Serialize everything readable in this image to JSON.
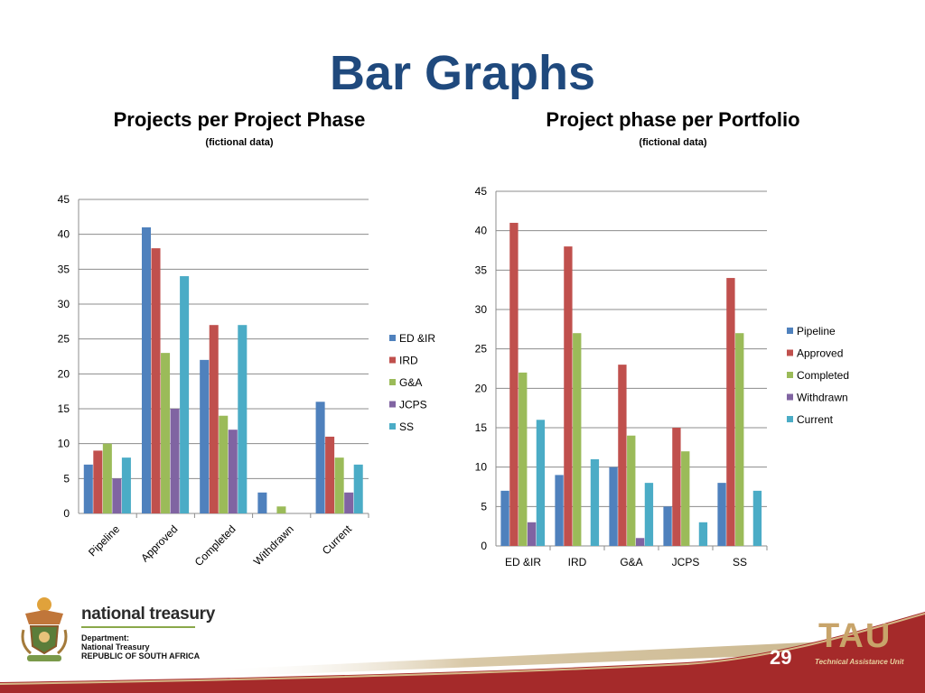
{
  "slide": {
    "title": "Bar Graphs",
    "page_number": "29",
    "footer": {
      "org_name": "national treasury",
      "dept_line1": "Department:",
      "dept_line2": "National Treasury",
      "republic": "REPUBLIC OF SOUTH AFRICA",
      "tau_logo": "TAU",
      "tau_subtitle": "Technical Assistance Unit"
    }
  },
  "colors": {
    "title": "#1f497d",
    "series": [
      "#4f81bd",
      "#c0504d",
      "#9bbb59",
      "#8064a2",
      "#4bacc6"
    ],
    "footer_red": "#a52a2a",
    "footer_gold": "#c8a46a"
  },
  "chart_data": [
    {
      "type": "bar",
      "title": "Projects per Project Phase",
      "subtitle": "(fictional data)",
      "categories": [
        "Pipeline",
        "Approved",
        "Completed",
        "Withdrawn",
        "Current"
      ],
      "series": [
        {
          "name": "ED &IR",
          "values": [
            7,
            41,
            22,
            3,
            16
          ]
        },
        {
          "name": "IRD",
          "values": [
            9,
            38,
            27,
            0,
            11
          ]
        },
        {
          "name": "G&A",
          "values": [
            10,
            23,
            14,
            1,
            8
          ]
        },
        {
          "name": "JCPS",
          "values": [
            5,
            15,
            12,
            0,
            3
          ]
        },
        {
          "name": "SS",
          "values": [
            8,
            34,
            27,
            0,
            7
          ]
        }
      ],
      "ylim": [
        0,
        45
      ],
      "yticks": [
        0,
        5,
        10,
        15,
        20,
        25,
        30,
        35,
        40,
        45
      ],
      "grid": true,
      "legend": "right",
      "xlabel_rotation": "diagonal"
    },
    {
      "type": "bar",
      "title": "Project phase per Portfolio",
      "subtitle": "(fictional data)",
      "categories": [
        "ED &IR",
        "IRD",
        "G&A",
        "JCPS",
        "SS"
      ],
      "series": [
        {
          "name": "Pipeline",
          "values": [
            7,
            9,
            10,
            5,
            8
          ]
        },
        {
          "name": "Approved",
          "values": [
            41,
            38,
            23,
            15,
            34
          ]
        },
        {
          "name": "Completed",
          "values": [
            22,
            27,
            14,
            12,
            27
          ]
        },
        {
          "name": "Withdrawn",
          "values": [
            3,
            0,
            1,
            0,
            0
          ]
        },
        {
          "name": "Current",
          "values": [
            16,
            11,
            8,
            3,
            7
          ]
        }
      ],
      "ylim": [
        0,
        45
      ],
      "yticks": [
        0,
        5,
        10,
        15,
        20,
        25,
        30,
        35,
        40,
        45
      ],
      "grid": true,
      "legend": "right",
      "xlabel_rotation": "horizontal"
    }
  ]
}
